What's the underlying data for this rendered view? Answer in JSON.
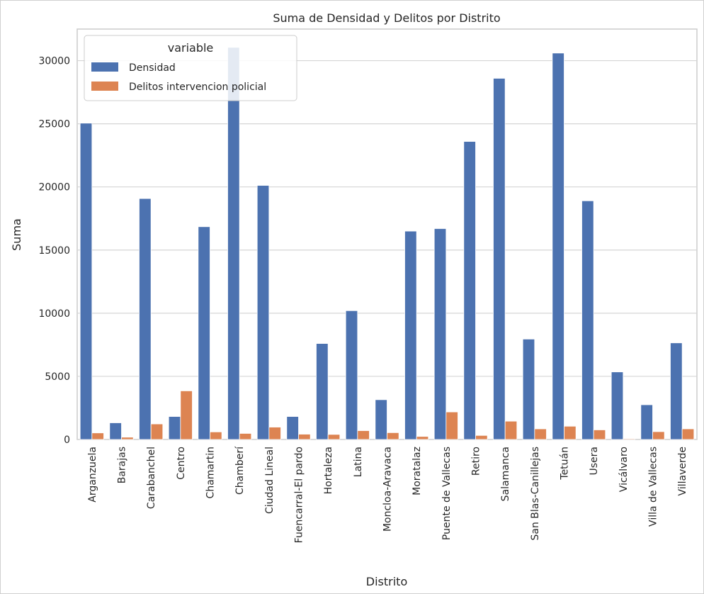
{
  "chart_data": {
    "type": "bar",
    "title": "Suma de Densidad y Delitos por Distrito",
    "xlabel": "Distrito",
    "ylabel": "Suma",
    "ylim": [
      0,
      32500
    ],
    "yticks": [
      0,
      5000,
      10000,
      15000,
      20000,
      25000,
      30000
    ],
    "grid": true,
    "legend": {
      "title": "variable",
      "placement": "upper-left"
    },
    "categories": [
      "Arganzuela",
      "Barajas",
      "Carabanchel",
      "Centro",
      "Chamartin",
      "Chamberí",
      "Ciudad Lineal",
      "Fuencarral-El pardo",
      "Hortaleza",
      "Latina",
      "Moncloa-Aravaca",
      "Moratalaz",
      "Puente de Vallecas",
      "Retiro",
      "Salamanca",
      "San Blas-Canillejas",
      "Tetuán",
      "Usera",
      "Vicálvaro",
      "Villa de Vallecas",
      "Villaverde"
    ],
    "series": [
      {
        "name": "Densidad",
        "color": "#4c72b0",
        "values": [
          25050,
          1320,
          19080,
          1820,
          16850,
          31050,
          20120,
          1820,
          7600,
          10200,
          3150,
          16500,
          16700,
          23600,
          28600,
          7950,
          30600,
          18900,
          5350,
          2750,
          7650
        ]
      },
      {
        "name": "Delitos intervencion policial",
        "color": "#dd8452",
        "values": [
          520,
          180,
          1230,
          3850,
          600,
          480,
          980,
          420,
          400,
          700,
          540,
          240,
          2180,
          320,
          1450,
          840,
          1050,
          760,
          60,
          620,
          840
        ]
      }
    ]
  }
}
